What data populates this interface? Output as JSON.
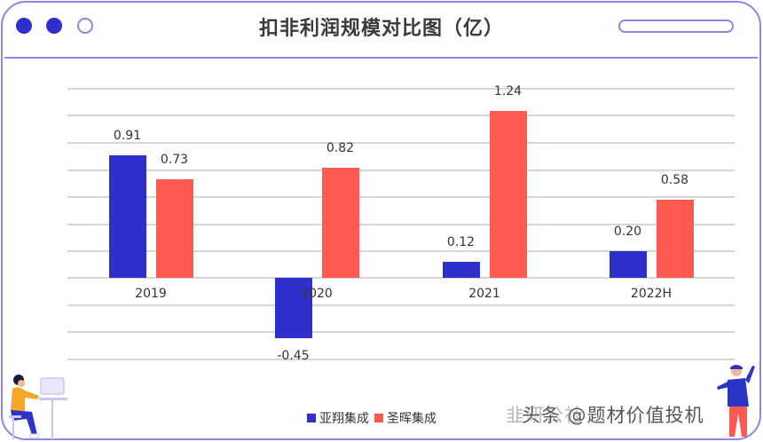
{
  "window": {
    "title": "扣非利润规模对比图（亿）",
    "dots": [
      "filled",
      "filled",
      "hollow"
    ],
    "accent_color": "#8b86e8"
  },
  "legend": {
    "items": [
      {
        "label": "亚翔集成",
        "color": "#2f30cc"
      },
      {
        "label": "圣晖集成",
        "color": "#ff5a52"
      }
    ]
  },
  "watermark": {
    "ghost_text": "韭研公社",
    "text": "头条 @题材价值投机"
  },
  "chart_data": {
    "type": "bar",
    "title": "扣非利润规模对比图（亿）",
    "xlabel": "",
    "ylabel": "",
    "categories": [
      "2019",
      "2020",
      "2021",
      "2022H"
    ],
    "series": [
      {
        "name": "亚翔集成",
        "color": "#2f30cc",
        "values": [
          0.91,
          -0.45,
          0.12,
          0.2
        ],
        "labels": [
          "0.91",
          "-0.45",
          "0.12",
          "0.20"
        ]
      },
      {
        "name": "圣晖集成",
        "color": "#ff5a52",
        "values": [
          0.73,
          0.82,
          1.24,
          0.58
        ],
        "labels": [
          "0.73",
          "0.82",
          "1.24",
          "0.58"
        ]
      }
    ],
    "ylim": [
      -0.6,
      1.4
    ],
    "grid": true,
    "y_axis_visible": false,
    "legend_position": "bottom"
  }
}
